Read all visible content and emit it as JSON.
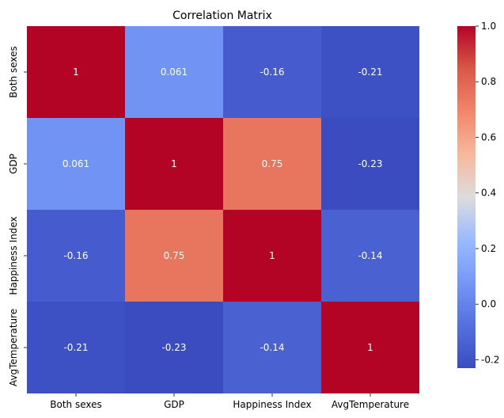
{
  "chart_data": {
    "type": "heatmap",
    "title": "Correlation Matrix",
    "x_labels": [
      "Both sexes",
      "GDP",
      "Happiness Index",
      "AvgTemperature"
    ],
    "y_labels": [
      "Both sexes",
      "GDP",
      "Happiness Index",
      "AvgTemperature"
    ],
    "values": [
      [
        1,
        0.061,
        -0.16,
        -0.21
      ],
      [
        0.061,
        1,
        0.75,
        -0.23
      ],
      [
        -0.16,
        0.75,
        1,
        -0.14
      ],
      [
        -0.21,
        -0.23,
        -0.14,
        1
      ]
    ],
    "annotations": [
      [
        "1",
        "0.061",
        "-0.16",
        "-0.21"
      ],
      [
        "0.061",
        "1",
        "0.75",
        "-0.23"
      ],
      [
        "-0.16",
        "0.75",
        "1",
        "-0.14"
      ],
      [
        "-0.21",
        "-0.23",
        "-0.14",
        "1"
      ]
    ],
    "colormap": "coolwarm",
    "vmin": -0.23,
    "vmax": 1,
    "colorbar_ticks": [
      "1.0",
      "0.8",
      "0.6",
      "0.4",
      "0.2",
      "0.0",
      "-0.2"
    ],
    "colorbar_tick_values": [
      1.0,
      0.8,
      0.6,
      0.4,
      0.2,
      0.0,
      -0.2
    ],
    "colorbar_position": "right"
  }
}
